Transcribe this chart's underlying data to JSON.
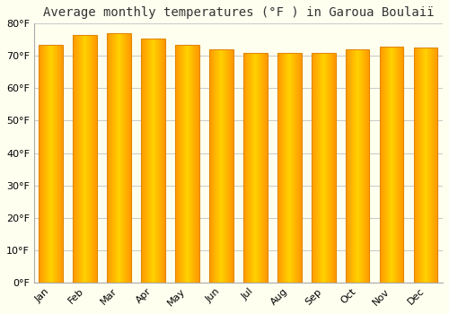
{
  "title": "Average monthly temperatures (°F ) in Garoua Boulaiï",
  "months": [
    "Jan",
    "Feb",
    "Mar",
    "Apr",
    "May",
    "Jun",
    "Jul",
    "Aug",
    "Sep",
    "Oct",
    "Nov",
    "Dec"
  ],
  "values": [
    73.5,
    76.5,
    77.0,
    75.5,
    73.5,
    72.0,
    71.0,
    71.0,
    71.0,
    72.0,
    73.0,
    72.5
  ],
  "ylim": [
    0,
    80
  ],
  "yticks": [
    0,
    10,
    20,
    30,
    40,
    50,
    60,
    70,
    80
  ],
  "ytick_labels": [
    "0°F",
    "10°F",
    "20°F",
    "30°F",
    "40°F",
    "50°F",
    "60°F",
    "70°F",
    "80°F"
  ],
  "bar_color_center": "#FFB830",
  "bar_color_edge": "#F09000",
  "background_color": "#FFFFF0",
  "plot_bg_color": "#FFFFF0",
  "grid_color": "#cccccc",
  "title_fontsize": 10,
  "tick_fontsize": 8,
  "bar_width": 0.7,
  "bar_edge_color": "#E08800"
}
